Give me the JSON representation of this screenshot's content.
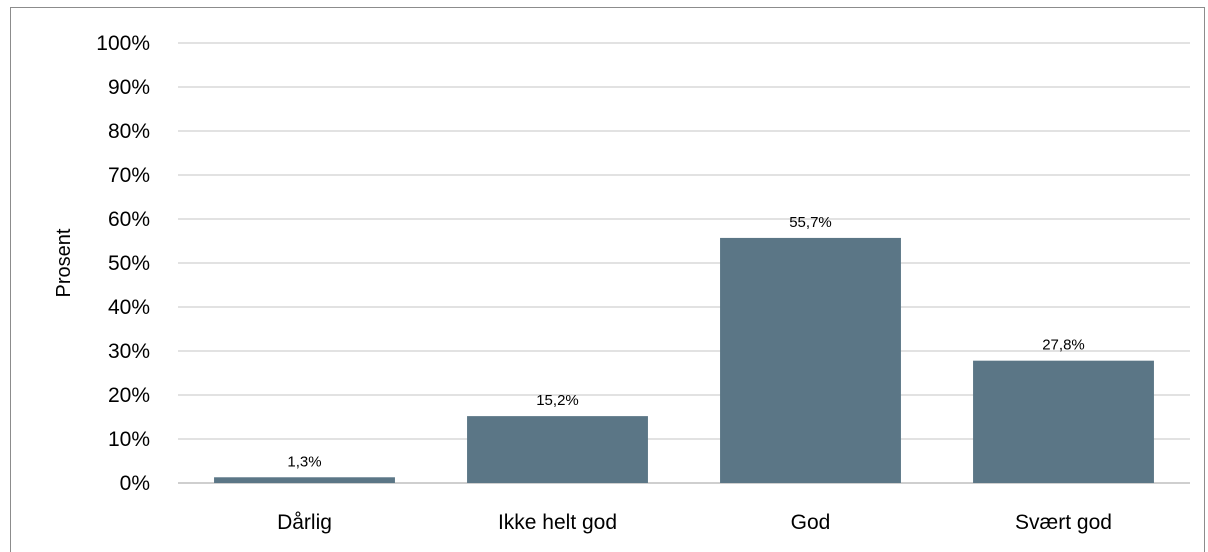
{
  "chart_data": {
    "type": "bar",
    "title": "",
    "xlabel": "",
    "ylabel": "Prosent",
    "ylim": [
      0,
      100
    ],
    "yticks": [
      "0%",
      "10%",
      "20%",
      "30%",
      "40%",
      "50%",
      "60%",
      "70%",
      "80%",
      "90%",
      "100%"
    ],
    "categories": [
      "Dårlig",
      "Ikke helt god",
      "God",
      "Svært god"
    ],
    "values": [
      1.3,
      15.2,
      55.7,
      27.8
    ],
    "data_labels": [
      "1,3%",
      "15,2%",
      "55,7%",
      "27,8%"
    ],
    "grid": true,
    "legend": "none",
    "colors": {
      "bar": "#5b7686",
      "grid": "#d9d9d9",
      "axis": "#bfbfbf",
      "border": "#8c8c8c"
    }
  }
}
